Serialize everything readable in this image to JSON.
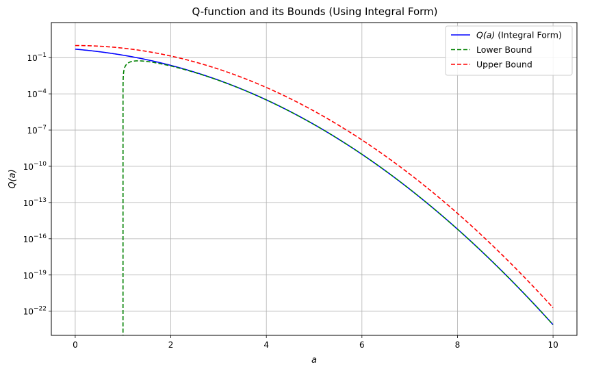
{
  "chart_data": {
    "type": "line",
    "title": "Q-function and its Bounds (Using Integral Form)",
    "xlabel": "a",
    "ylabel": "Q(a)",
    "xlim": [
      -0.5,
      10.5
    ],
    "ylim_log10": [
      -24,
      1.9
    ],
    "yscale": "log",
    "grid": true,
    "legend_position": "top-right",
    "x_ticks": [
      0,
      2,
      4,
      6,
      8,
      10
    ],
    "x_tick_labels": [
      "0",
      "2",
      "4",
      "6",
      "8",
      "10"
    ],
    "y_ticks_log10": [
      -22,
      -19,
      -16,
      -13,
      -10,
      -7,
      -4,
      -1
    ],
    "y_tick_labels": [
      {
        "base": "10",
        "exp": "−22"
      },
      {
        "base": "10",
        "exp": "−19"
      },
      {
        "base": "10",
        "exp": "−16"
      },
      {
        "base": "10",
        "exp": "−13"
      },
      {
        "base": "10",
        "exp": "−10"
      },
      {
        "base": "10",
        "exp": "−7"
      },
      {
        "base": "10",
        "exp": "−4"
      },
      {
        "base": "10",
        "exp": "−1"
      }
    ],
    "series": [
      {
        "name": "Q(a) (Integral Form)",
        "legend_math": "Q(a)",
        "legend_rest": " (Integral Form)",
        "color": "#0000ff",
        "dash": "solid",
        "formula": "Q(a)",
        "x_range": [
          0,
          10
        ]
      },
      {
        "name": "Lower Bound",
        "color": "#008000",
        "dash": "dashed",
        "formula": "(1/(a*sqrt(2pi)))*(1-1/a^2)*exp(-a^2/2)",
        "x_range": [
          1.0,
          10
        ]
      },
      {
        "name": "Upper Bound",
        "color": "#ff0000",
        "dash": "dashed",
        "formula": "exp(-a^2/2)",
        "x_range": [
          0,
          10
        ]
      }
    ]
  }
}
